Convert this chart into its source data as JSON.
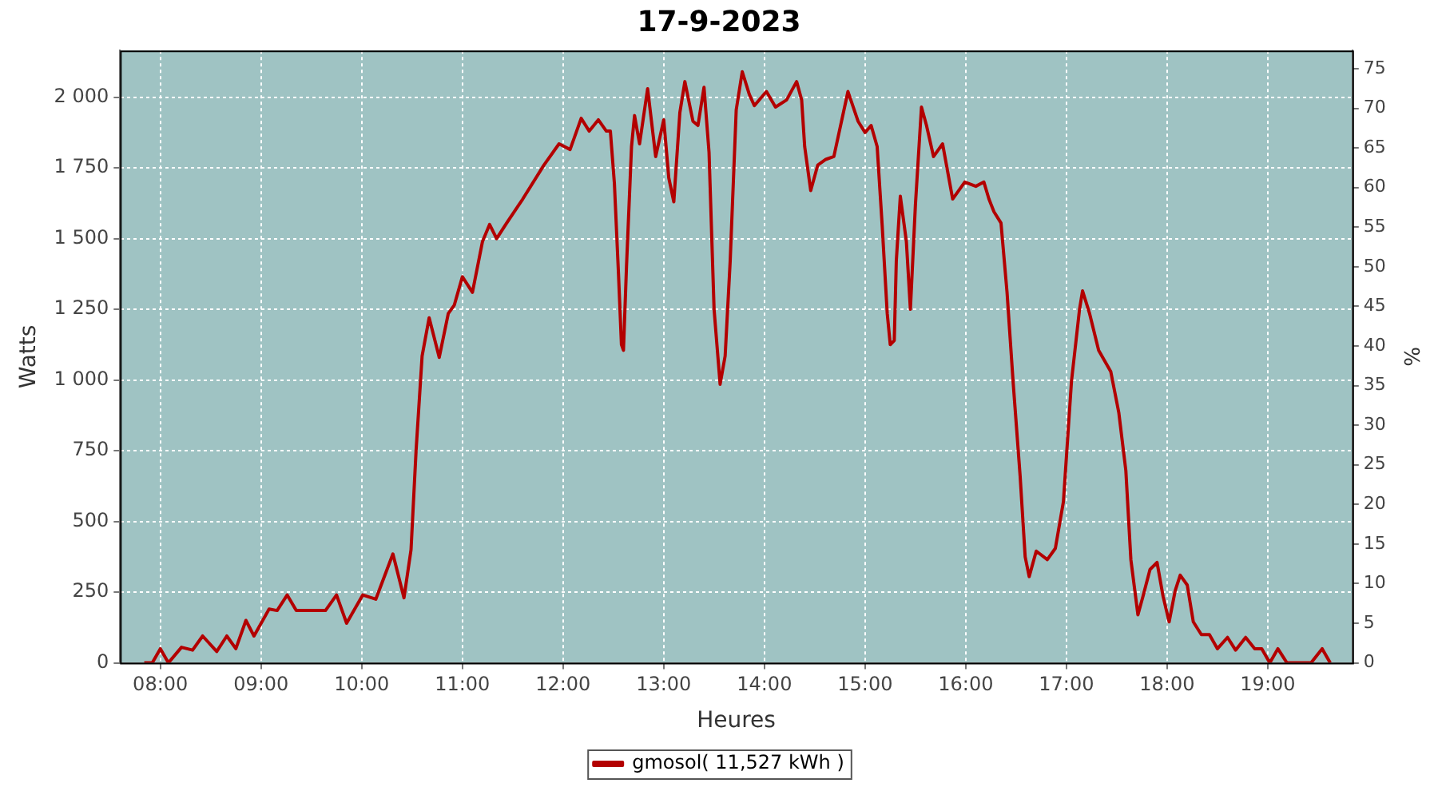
{
  "chart_data": {
    "type": "line",
    "title": "17-9-2023",
    "xlabel": "Heures",
    "ylabel": "Watts",
    "y2label": "%",
    "xlim": [
      7.6,
      19.84
    ],
    "xticks": [
      {
        "value": 8,
        "label": "08:00"
      },
      {
        "value": 9,
        "label": "09:00"
      },
      {
        "value": 10,
        "label": "10:00"
      },
      {
        "value": 11,
        "label": "11:00"
      },
      {
        "value": 12,
        "label": "12:00"
      },
      {
        "value": 13,
        "label": "13:00"
      },
      {
        "value": 14,
        "label": "14:00"
      },
      {
        "value": 15,
        "label": "15:00"
      },
      {
        "value": 16,
        "label": "16:00"
      },
      {
        "value": 17,
        "label": "17:00"
      },
      {
        "value": 18,
        "label": "18:00"
      },
      {
        "value": 19,
        "label": "19:00"
      }
    ],
    "ylim": [
      0,
      2165
    ],
    "yticks": [
      0,
      250,
      500,
      750,
      {
        "value": 1000,
        "label": "1 000"
      },
      {
        "value": 1250,
        "label": "1 250"
      },
      {
        "value": 1500,
        "label": "1 500"
      },
      {
        "value": 1750,
        "label": "1 750"
      },
      {
        "value": 2000,
        "label": "2 000"
      }
    ],
    "y2lim": [
      0,
      77.3
    ],
    "y2ticks": [
      0,
      5,
      10,
      15,
      20,
      25,
      30,
      35,
      40,
      45,
      50,
      55,
      60,
      65,
      70,
      75
    ],
    "grid": true,
    "legend": "bottom",
    "marker": "none",
    "series": [
      {
        "name": "gmosol( 11,527 kWh )",
        "color": "#b30000",
        "x": [
          7.84,
          7.92,
          8.0,
          8.08,
          8.21,
          8.32,
          8.42,
          8.56,
          8.66,
          8.75,
          8.85,
          8.93,
          9.08,
          9.16,
          9.26,
          9.35,
          9.64,
          9.75,
          9.85,
          10.01,
          10.14,
          10.31,
          10.42,
          10.49,
          10.54,
          10.6,
          10.67,
          10.77,
          10.86,
          10.92,
          11.0,
          11.1,
          11.2,
          11.27,
          11.34,
          11.44,
          11.6,
          11.81,
          11.96,
          12.07,
          12.18,
          12.26,
          12.35,
          12.43,
          12.47,
          12.51,
          12.55,
          12.58,
          12.6,
          12.63,
          12.68,
          12.71,
          12.76,
          12.84,
          12.92,
          13.0,
          13.05,
          13.1,
          13.16,
          13.21,
          13.29,
          13.34,
          13.4,
          13.45,
          13.5,
          13.56,
          13.61,
          13.66,
          13.72,
          13.78,
          13.85,
          13.9,
          14.02,
          14.11,
          14.22,
          14.32,
          14.37,
          14.4,
          14.46,
          14.53,
          14.61,
          14.69,
          14.83,
          14.93,
          15.0,
          15.06,
          15.12,
          15.17,
          15.22,
          15.25,
          15.29,
          15.31,
          15.35,
          15.41,
          15.45,
          15.5,
          15.56,
          15.61,
          15.68,
          15.77,
          15.87,
          15.99,
          16.1,
          16.18,
          16.23,
          16.28,
          16.35,
          16.41,
          16.47,
          16.54,
          16.59,
          16.63,
          16.7,
          16.81,
          16.89,
          16.97,
          17.05,
          17.13,
          17.16,
          17.23,
          17.32,
          17.44,
          17.52,
          17.59,
          17.64,
          17.71,
          17.76,
          17.83,
          17.9,
          17.96,
          18.02,
          18.08,
          18.13,
          18.2,
          18.26,
          18.34,
          18.42,
          18.5,
          18.6,
          18.68,
          18.78,
          18.87,
          18.94,
          19.02,
          19.1,
          19.19,
          19.32,
          19.43,
          19.54,
          19.62
        ],
        "values": [
          0,
          0,
          50,
          0,
          55,
          45,
          95,
          40,
          95,
          50,
          150,
          95,
          190,
          185,
          240,
          185,
          185,
          240,
          140,
          240,
          225,
          385,
          230,
          400,
          750,
          1085,
          1220,
          1080,
          1235,
          1265,
          1365,
          1310,
          1490,
          1550,
          1500,
          1555,
          1640,
          1760,
          1835,
          1815,
          1925,
          1880,
          1920,
          1880,
          1880,
          1695,
          1380,
          1125,
          1105,
          1400,
          1825,
          1935,
          1835,
          2030,
          1790,
          1920,
          1715,
          1630,
          1945,
          2055,
          1915,
          1900,
          2035,
          1805,
          1250,
          985,
          1085,
          1420,
          1955,
          2090,
          2010,
          1970,
          2020,
          1965,
          1990,
          2055,
          1990,
          1825,
          1670,
          1760,
          1780,
          1790,
          2020,
          1915,
          1875,
          1900,
          1825,
          1545,
          1235,
          1125,
          1140,
          1420,
          1650,
          1490,
          1250,
          1620,
          1965,
          1900,
          1790,
          1835,
          1640,
          1700,
          1685,
          1700,
          1640,
          1595,
          1555,
          1310,
          995,
          660,
          375,
          305,
          395,
          365,
          405,
          570,
          995,
          1250,
          1315,
          1235,
          1105,
          1030,
          885,
          680,
          365,
          170,
          235,
          330,
          355,
          235,
          145,
          255,
          310,
          275,
          145,
          100,
          100,
          50,
          90,
          45,
          90,
          50,
          50,
          0,
          50,
          0,
          0,
          0,
          50,
          0
        ]
      }
    ]
  }
}
